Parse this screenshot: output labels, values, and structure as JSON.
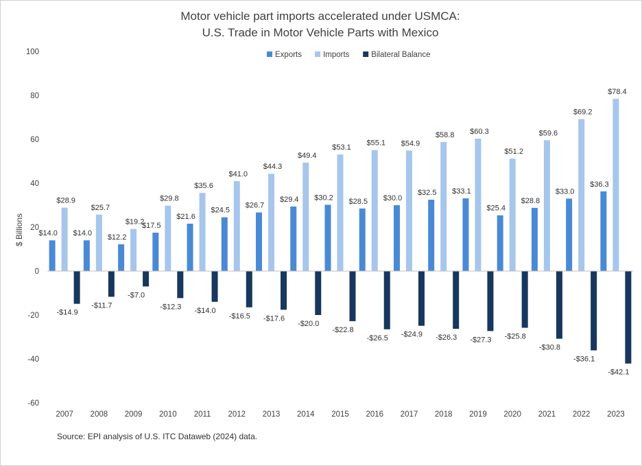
{
  "chart_data": {
    "type": "bar",
    "title": "Motor vehicle part imports accelerated under USMCA:",
    "subtitle": "U.S. Trade in Motor Vehicle Parts with Mexico",
    "ylabel": "$ Billions",
    "xlabel": "",
    "ylim": [
      -60,
      100
    ],
    "yticks": [
      -60,
      -40,
      -20,
      0,
      20,
      40,
      60,
      80,
      100
    ],
    "legend_position": "top",
    "grid": false,
    "categories": [
      "2007",
      "2008",
      "2009",
      "2010",
      "2011",
      "2012",
      "2013",
      "2014",
      "2015",
      "2016",
      "2017",
      "2018",
      "2019",
      "2020",
      "2021",
      "2022",
      "2023"
    ],
    "series": [
      {
        "name": "Exports",
        "color": "#4a8ad4",
        "values": [
          14.0,
          14.0,
          12.2,
          17.5,
          21.6,
          24.5,
          26.7,
          29.4,
          30.2,
          28.5,
          30.0,
          32.5,
          33.1,
          25.4,
          28.8,
          33.0,
          36.3
        ],
        "labels": [
          "$14.0",
          "$14.0",
          "$12.2",
          "$17.5",
          "$21.6",
          "$24.5",
          "$26.7",
          "$29.4",
          "$30.2",
          "$28.5",
          "$30.0",
          "$32.5",
          "$33.1",
          "$25.4",
          "$28.8",
          "$33.0",
          "$36.3"
        ]
      },
      {
        "name": "Imports",
        "color": "#a7c6ec",
        "values": [
          28.9,
          25.7,
          19.2,
          29.8,
          35.6,
          41.0,
          44.3,
          49.4,
          53.1,
          55.1,
          54.9,
          58.8,
          60.3,
          51.2,
          59.6,
          69.2,
          78.4
        ],
        "labels": [
          "$28.9",
          "$25.7",
          "$19.2",
          "$29.8",
          "$35.6",
          "$41.0",
          "$44.3",
          "$49.4",
          "$53.1",
          "$55.1",
          "$54.9",
          "$58.8",
          "$60.3",
          "$51.2",
          "$59.6",
          "$69.2",
          "$78.4"
        ]
      },
      {
        "name": "Bilateral Balance",
        "color": "#17375e",
        "values": [
          -14.9,
          -11.7,
          -7.0,
          -12.3,
          -14.0,
          -16.5,
          -17.6,
          -20.0,
          -22.8,
          -26.5,
          -24.9,
          -26.3,
          -27.3,
          -25.8,
          -30.8,
          -36.1,
          -42.1
        ],
        "labels": [
          "-$14.9",
          "-$11.7",
          "-$7.0",
          "-$12.3",
          "-$14.0",
          "-$16.5",
          "-$17.6",
          "-$20.0",
          "-$22.8",
          "-$26.5",
          "-$24.9",
          "-$26.3",
          "-$27.3",
          "-$25.8",
          "-$30.8",
          "-$36.1",
          "-$42.1"
        ]
      }
    ]
  },
  "source": "Source: EPI analysis of U.S. ITC Dataweb (2024) data."
}
